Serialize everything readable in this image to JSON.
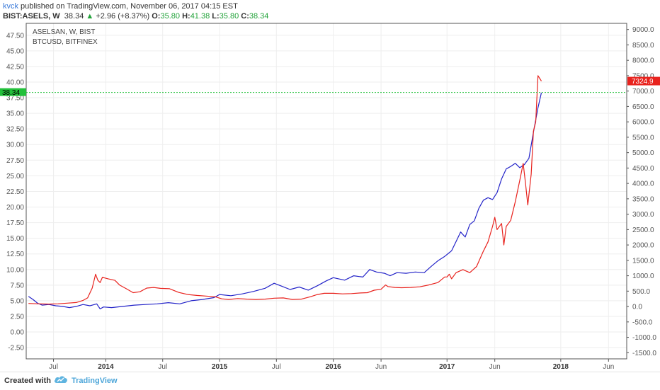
{
  "header": {
    "author": "kvck",
    "published_text": " published on TradingView.com, November 06, 2017 04:15 EST",
    "symbol": "BIST:ASELS, W",
    "last": "38.34",
    "change": "+2.96 (+8.37%)",
    "open_label": "O:",
    "open_value": "35.80",
    "high_label": "H:",
    "high_value": "41.38",
    "low_label": "L:",
    "low_value": "35.80",
    "close_label": "C:",
    "close_value": "38.34"
  },
  "legend": {
    "series1": "ASELSAN, W, BIST",
    "series2": "BTCUSD, BITFINEX"
  },
  "price_tags": {
    "left": "38.34",
    "right": "7324.9"
  },
  "footer": {
    "created_with": "Created with",
    "brand": "TradingView"
  },
  "colors": {
    "asels": "#2323c8",
    "btc": "#e8231e",
    "last_price_line": "#22c03a",
    "grid": "#eeeeee"
  },
  "chart_data": {
    "type": "line",
    "x_ticks": [
      "Jul",
      "2014",
      "Jul",
      "2015",
      "Jul",
      "2016",
      "Jun",
      "2017",
      "Jun",
      "2018",
      "Jun"
    ],
    "x_tick_dates": [
      2013.54,
      2014.0,
      2014.5,
      2015.0,
      2015.5,
      2016.0,
      2016.42,
      2017.0,
      2017.42,
      2018.0,
      2018.42
    ],
    "x_tick_bold": [
      false,
      true,
      false,
      true,
      false,
      true,
      false,
      true,
      false,
      true,
      false
    ],
    "xlim": [
      2013.3,
      2018.58
    ],
    "y_left": {
      "lim": [
        -4.3,
        49.4
      ],
      "ticks": [
        -2.5,
        0,
        2.5,
        5,
        7.5,
        10,
        12.5,
        15,
        17.5,
        20,
        22.5,
        25,
        27.5,
        30,
        32.5,
        35,
        37.5,
        40,
        42.5,
        45,
        47.5
      ]
    },
    "y_right": {
      "lim": [
        -1700,
        9200
      ],
      "ticks": [
        -1500,
        -1000,
        -500,
        0,
        500,
        1000,
        1500,
        2000,
        2500,
        3000,
        3500,
        4000,
        4500,
        5000,
        5500,
        6000,
        6500,
        7000,
        7500,
        8000,
        8500,
        9000
      ]
    },
    "series": [
      {
        "name": "ASELSAN, W, BIST",
        "axis": "left",
        "color": "#2323c8",
        "points": [
          [
            2013.32,
            5.7
          ],
          [
            2013.36,
            5.2
          ],
          [
            2013.4,
            4.6
          ],
          [
            2013.44,
            4.3
          ],
          [
            2013.5,
            4.4
          ],
          [
            2013.56,
            4.2
          ],
          [
            2013.62,
            4.1
          ],
          [
            2013.68,
            3.9
          ],
          [
            2013.74,
            4.1
          ],
          [
            2013.8,
            4.4
          ],
          [
            2013.86,
            4.2
          ],
          [
            2013.92,
            4.5
          ],
          [
            2013.95,
            3.7
          ],
          [
            2013.98,
            4.0
          ],
          [
            2014.05,
            3.9
          ],
          [
            2014.15,
            4.1
          ],
          [
            2014.25,
            4.3
          ],
          [
            2014.35,
            4.4
          ],
          [
            2014.45,
            4.5
          ],
          [
            2014.55,
            4.7
          ],
          [
            2014.65,
            4.5
          ],
          [
            2014.75,
            5.0
          ],
          [
            2014.85,
            5.2
          ],
          [
            2014.95,
            5.5
          ],
          [
            2015.0,
            6.0
          ],
          [
            2015.1,
            5.8
          ],
          [
            2015.2,
            6.1
          ],
          [
            2015.3,
            6.5
          ],
          [
            2015.4,
            7.0
          ],
          [
            2015.48,
            7.8
          ],
          [
            2015.55,
            7.3
          ],
          [
            2015.62,
            6.8
          ],
          [
            2015.7,
            7.2
          ],
          [
            2015.78,
            6.7
          ],
          [
            2015.86,
            7.4
          ],
          [
            2015.94,
            8.2
          ],
          [
            2016.0,
            8.7
          ],
          [
            2016.1,
            8.3
          ],
          [
            2016.18,
            9.0
          ],
          [
            2016.26,
            8.8
          ],
          [
            2016.32,
            10.0
          ],
          [
            2016.38,
            9.6
          ],
          [
            2016.45,
            9.4
          ],
          [
            2016.5,
            9.0
          ],
          [
            2016.56,
            9.5
          ],
          [
            2016.64,
            9.4
          ],
          [
            2016.72,
            9.6
          ],
          [
            2016.8,
            9.5
          ],
          [
            2016.86,
            10.5
          ],
          [
            2016.92,
            11.4
          ],
          [
            2016.98,
            12.1
          ],
          [
            2017.04,
            13.0
          ],
          [
            2017.08,
            14.5
          ],
          [
            2017.12,
            16.0
          ],
          [
            2017.16,
            15.2
          ],
          [
            2017.2,
            17.2
          ],
          [
            2017.24,
            17.8
          ],
          [
            2017.28,
            19.8
          ],
          [
            2017.32,
            21.1
          ],
          [
            2017.36,
            21.5
          ],
          [
            2017.4,
            21.2
          ],
          [
            2017.44,
            22.3
          ],
          [
            2017.48,
            24.5
          ],
          [
            2017.52,
            26.1
          ],
          [
            2017.56,
            26.5
          ],
          [
            2017.6,
            27.0
          ],
          [
            2017.64,
            26.3
          ],
          [
            2017.68,
            26.8
          ],
          [
            2017.72,
            27.8
          ],
          [
            2017.76,
            32.0
          ],
          [
            2017.8,
            35.9
          ],
          [
            2017.83,
            38.3
          ]
        ]
      },
      {
        "name": "BTCUSD, BITFINEX",
        "axis": "right",
        "color": "#e8231e",
        "points": [
          [
            2013.32,
            100
          ],
          [
            2013.4,
            90
          ],
          [
            2013.5,
            80
          ],
          [
            2013.58,
            90
          ],
          [
            2013.66,
            110
          ],
          [
            2013.74,
            130
          ],
          [
            2013.8,
            200
          ],
          [
            2013.84,
            280
          ],
          [
            2013.88,
            600
          ],
          [
            2013.91,
            1050
          ],
          [
            2013.93,
            850
          ],
          [
            2013.95,
            780
          ],
          [
            2013.97,
            950
          ],
          [
            2014.02,
            900
          ],
          [
            2014.08,
            850
          ],
          [
            2014.12,
            700
          ],
          [
            2014.18,
            580
          ],
          [
            2014.24,
            450
          ],
          [
            2014.3,
            480
          ],
          [
            2014.36,
            600
          ],
          [
            2014.42,
            620
          ],
          [
            2014.48,
            590
          ],
          [
            2014.56,
            580
          ],
          [
            2014.64,
            460
          ],
          [
            2014.72,
            390
          ],
          [
            2014.8,
            360
          ],
          [
            2014.88,
            340
          ],
          [
            2014.96,
            320
          ],
          [
            2015.02,
            250
          ],
          [
            2015.08,
            230
          ],
          [
            2015.16,
            260
          ],
          [
            2015.24,
            240
          ],
          [
            2015.32,
            230
          ],
          [
            2015.4,
            240
          ],
          [
            2015.48,
            270
          ],
          [
            2015.56,
            280
          ],
          [
            2015.64,
            230
          ],
          [
            2015.72,
            240
          ],
          [
            2015.8,
            320
          ],
          [
            2015.86,
            390
          ],
          [
            2015.92,
            430
          ],
          [
            2016.0,
            430
          ],
          [
            2016.08,
            410
          ],
          [
            2016.16,
            420
          ],
          [
            2016.24,
            440
          ],
          [
            2016.3,
            450
          ],
          [
            2016.36,
            530
          ],
          [
            2016.42,
            560
          ],
          [
            2016.46,
            700
          ],
          [
            2016.48,
            650
          ],
          [
            2016.54,
            620
          ],
          [
            2016.6,
            610
          ],
          [
            2016.68,
            620
          ],
          [
            2016.76,
            640
          ],
          [
            2016.84,
            700
          ],
          [
            2016.92,
            780
          ],
          [
            2016.98,
            960
          ],
          [
            2017.0,
            960
          ],
          [
            2017.02,
            1050
          ],
          [
            2017.04,
            900
          ],
          [
            2017.08,
            1100
          ],
          [
            2017.14,
            1200
          ],
          [
            2017.2,
            1100
          ],
          [
            2017.26,
            1300
          ],
          [
            2017.32,
            1800
          ],
          [
            2017.36,
            2100
          ],
          [
            2017.4,
            2600
          ],
          [
            2017.42,
            2900
          ],
          [
            2017.44,
            2500
          ],
          [
            2017.48,
            2700
          ],
          [
            2017.5,
            2000
          ],
          [
            2017.52,
            2600
          ],
          [
            2017.56,
            2800
          ],
          [
            2017.6,
            3400
          ],
          [
            2017.64,
            4100
          ],
          [
            2017.67,
            4650
          ],
          [
            2017.69,
            4000
          ],
          [
            2017.71,
            3300
          ],
          [
            2017.74,
            4300
          ],
          [
            2017.76,
            5700
          ],
          [
            2017.78,
            6000
          ],
          [
            2017.8,
            7500
          ],
          [
            2017.83,
            7325
          ]
        ]
      }
    ]
  }
}
